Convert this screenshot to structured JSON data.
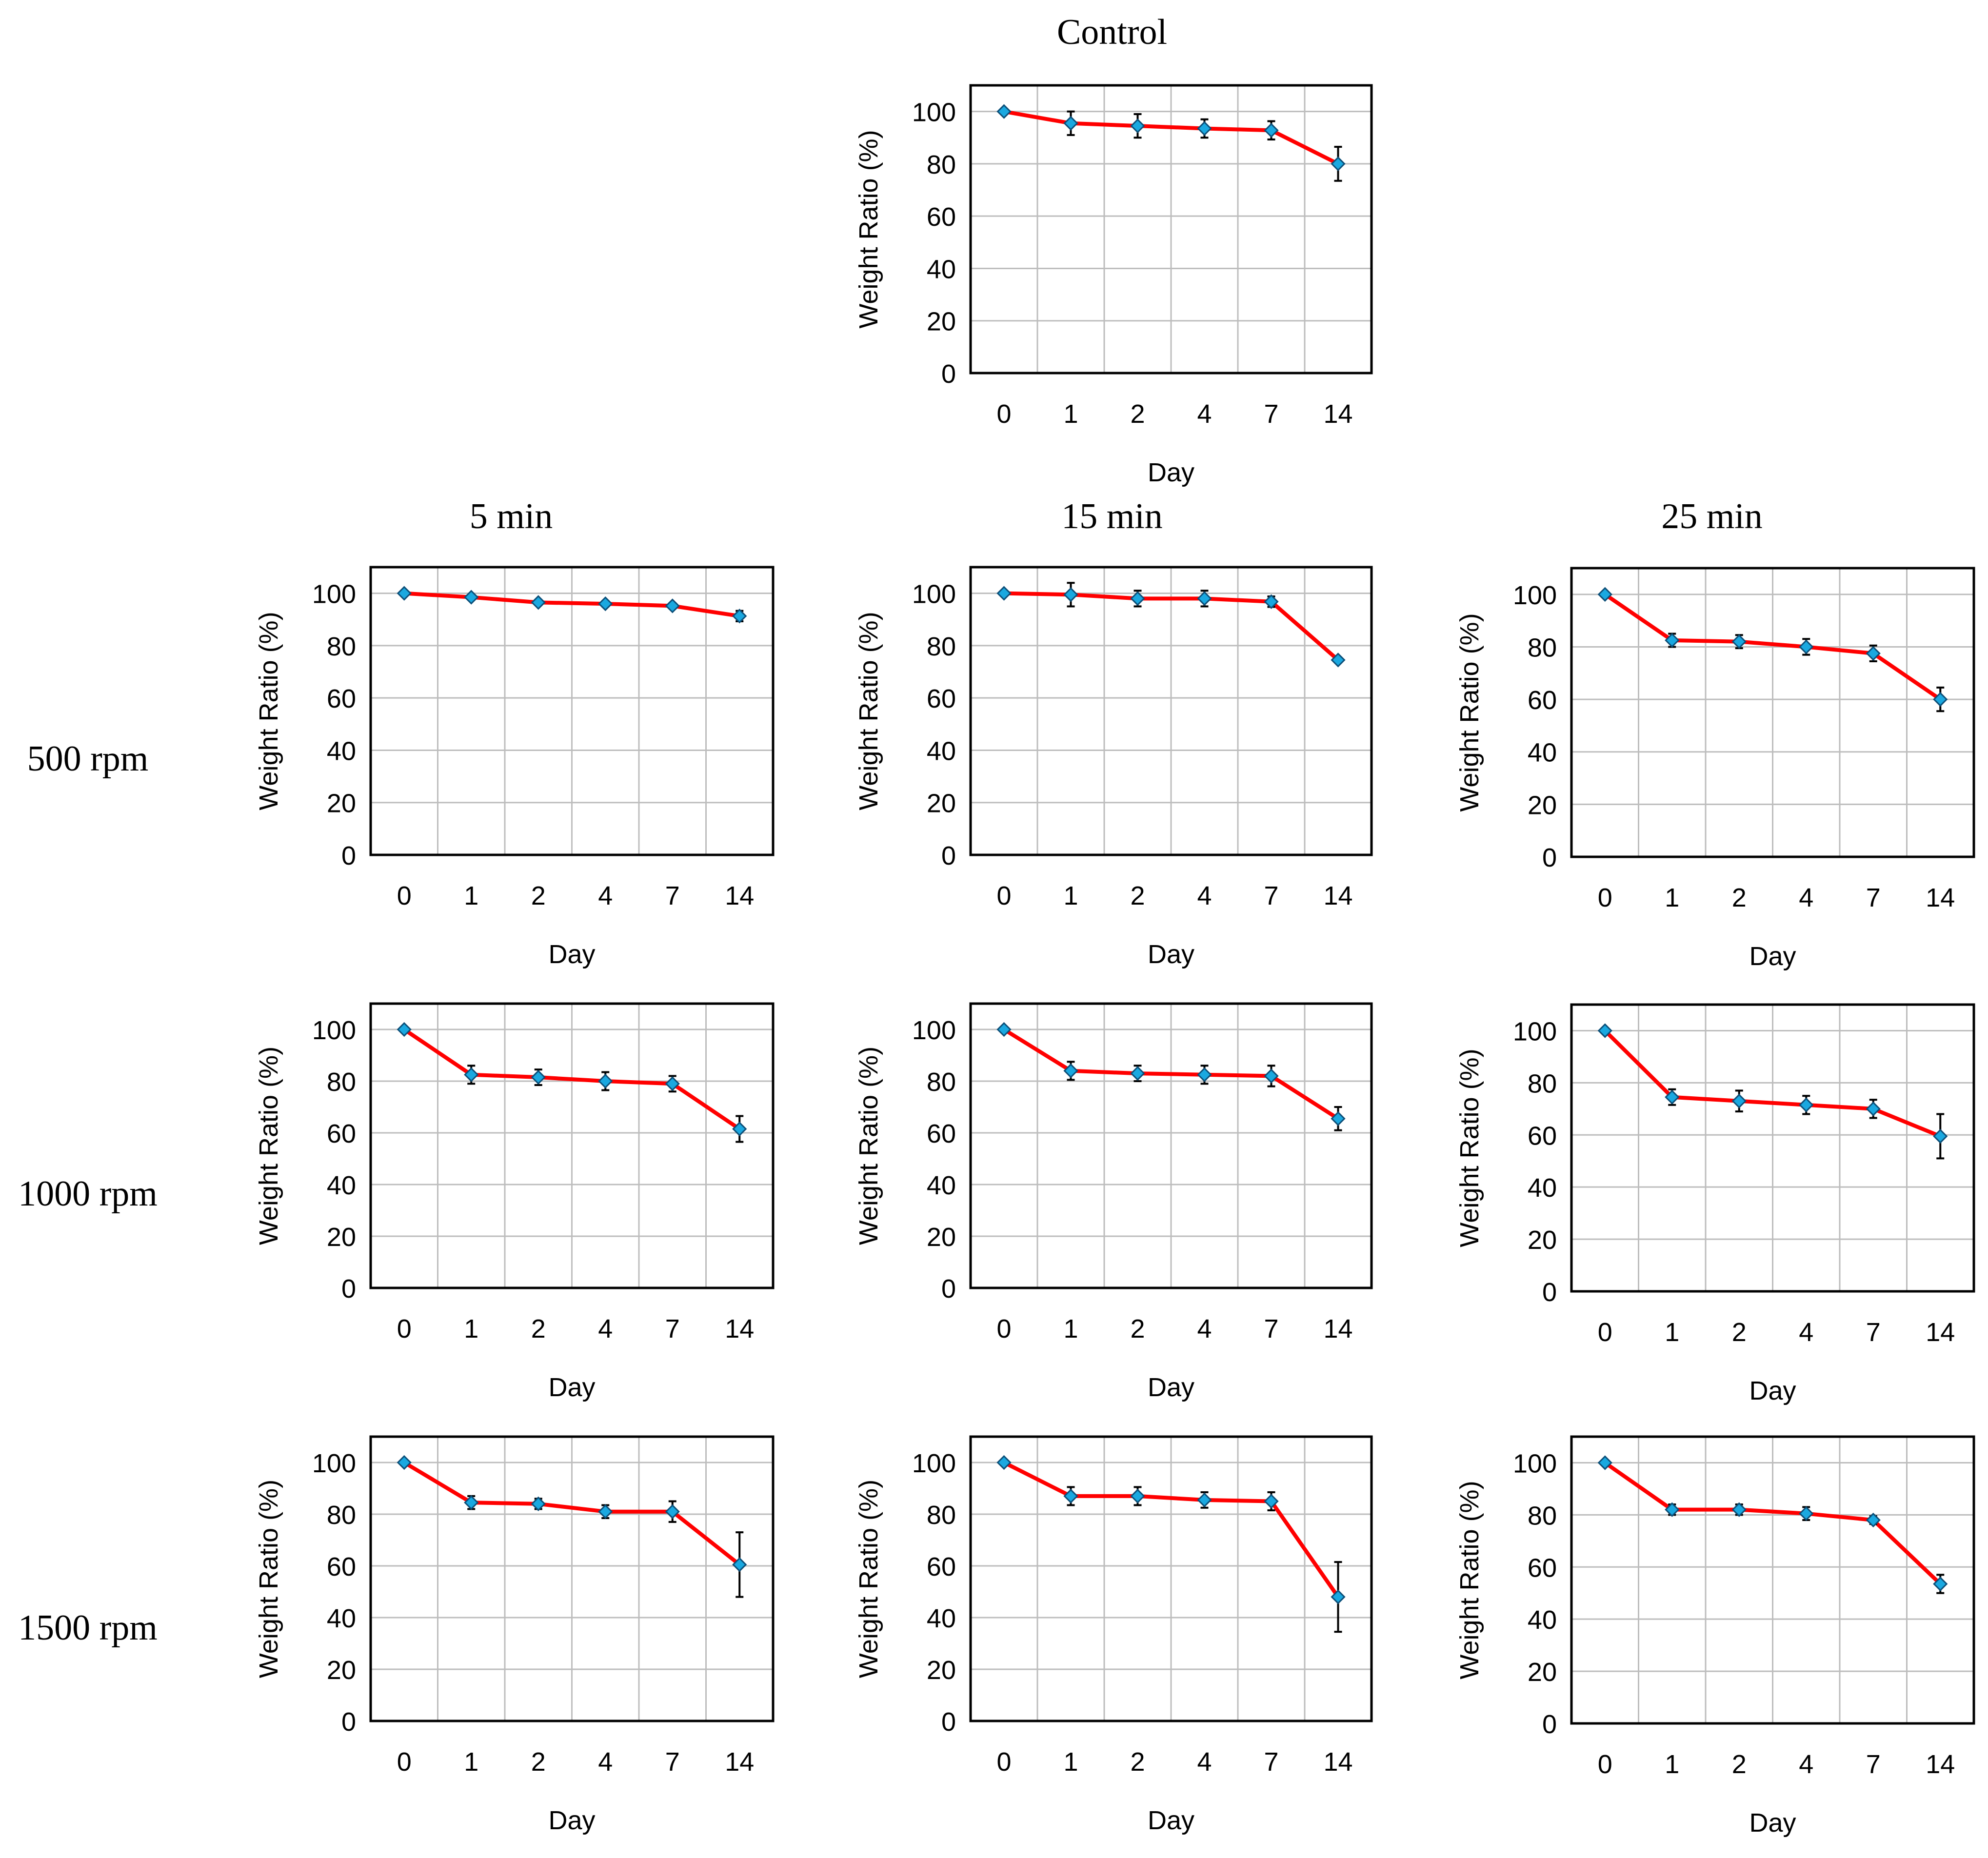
{
  "figure": {
    "column_headers": [
      "5 min",
      "15 min",
      "25 min"
    ],
    "row_headers": [
      "500 rpm",
      "1000 rpm",
      "1500 rpm"
    ],
    "control_title": "Control"
  },
  "colors": {
    "line": "#ff0000",
    "marker_fill": "#1aa8e0",
    "marker_stroke": "#0d4f78",
    "error_bar": "#000000",
    "grid": "#bdbdbd",
    "frame": "#000000",
    "text": "#000000"
  },
  "chart_data": [
    {
      "id": "control",
      "type": "line",
      "title": "Control",
      "categories": [
        "0",
        "1",
        "2",
        "4",
        "7",
        "14"
      ],
      "series": [
        {
          "values": [
            100,
            95.5,
            94.5,
            93.5,
            92.8,
            80
          ],
          "errors": [
            0,
            4.5,
            4.5,
            3.5,
            3.5,
            6.5
          ]
        }
      ],
      "xlabel": "Day",
      "ylabel": "Weight Ratio (%)",
      "ylim": [
        0,
        110
      ],
      "yticks": [
        0,
        20,
        40,
        60,
        80,
        100
      ],
      "grid": true
    },
    {
      "id": "500rpm-5min",
      "type": "line",
      "categories": [
        "0",
        "1",
        "2",
        "4",
        "7",
        "14"
      ],
      "series": [
        {
          "values": [
            100,
            98.5,
            96.5,
            96,
            95.2,
            91.3
          ],
          "errors": [
            0,
            1,
            1,
            1,
            1,
            2
          ]
        }
      ],
      "xlabel": "Day",
      "ylabel": "Weight Ratio (%)",
      "ylim": [
        0,
        110
      ],
      "yticks": [
        0,
        20,
        40,
        60,
        80,
        100
      ],
      "grid": true
    },
    {
      "id": "500rpm-15min",
      "type": "line",
      "categories": [
        "0",
        "1",
        "2",
        "4",
        "7",
        "14"
      ],
      "series": [
        {
          "values": [
            100,
            99.5,
            98,
            98,
            96.8,
            74.5
          ],
          "errors": [
            0,
            4.5,
            3,
            3,
            2,
            1
          ]
        }
      ],
      "xlabel": "Day",
      "ylabel": "Weight Ratio (%)",
      "ylim": [
        0,
        110
      ],
      "yticks": [
        0,
        20,
        40,
        60,
        80,
        100
      ],
      "grid": true
    },
    {
      "id": "500rpm-25min",
      "type": "line",
      "categories": [
        "0",
        "1",
        "2",
        "4",
        "7",
        "14"
      ],
      "series": [
        {
          "values": [
            100,
            82.5,
            82,
            80,
            77.5,
            60
          ],
          "errors": [
            0,
            2.5,
            2.5,
            3,
            3,
            4.5
          ]
        }
      ],
      "xlabel": "Day",
      "ylabel": "Weight Ratio (%)",
      "ylim": [
        0,
        110
      ],
      "yticks": [
        0,
        20,
        40,
        60,
        80,
        100
      ],
      "grid": true
    },
    {
      "id": "1000rpm-5min",
      "type": "line",
      "categories": [
        "0",
        "1",
        "2",
        "4",
        "7",
        "14"
      ],
      "series": [
        {
          "values": [
            100,
            82.5,
            81.5,
            80,
            79,
            61.5
          ],
          "errors": [
            0,
            3.5,
            3,
            3.5,
            3,
            5
          ]
        }
      ],
      "xlabel": "Day",
      "ylabel": "Weight Ratio (%)",
      "ylim": [
        0,
        110
      ],
      "yticks": [
        0,
        20,
        40,
        60,
        80,
        100
      ],
      "grid": true
    },
    {
      "id": "1000rpm-15min",
      "type": "line",
      "categories": [
        "0",
        "1",
        "2",
        "4",
        "7",
        "14"
      ],
      "series": [
        {
          "values": [
            100,
            84,
            83,
            82.5,
            82,
            65.5
          ],
          "errors": [
            0,
            3.5,
            3,
            3.5,
            4,
            4.5
          ]
        }
      ],
      "xlabel": "Day",
      "ylabel": "Weight Ratio (%)",
      "ylim": [
        0,
        110
      ],
      "yticks": [
        0,
        20,
        40,
        60,
        80,
        100
      ],
      "grid": true
    },
    {
      "id": "1000rpm-25min",
      "type": "line",
      "categories": [
        "0",
        "1",
        "2",
        "4",
        "7",
        "14"
      ],
      "series": [
        {
          "values": [
            100,
            74.5,
            73,
            71.5,
            70,
            59.5
          ],
          "errors": [
            0,
            3,
            4,
            3.5,
            3.5,
            8.5
          ]
        }
      ],
      "xlabel": "Day",
      "ylabel": "Weight Ratio (%)",
      "ylim": [
        0,
        110
      ],
      "yticks": [
        0,
        20,
        40,
        60,
        80,
        100
      ],
      "grid": true
    },
    {
      "id": "1500rpm-5min",
      "type": "line",
      "categories": [
        "0",
        "1",
        "2",
        "4",
        "7",
        "14"
      ],
      "series": [
        {
          "values": [
            100,
            84.5,
            84,
            81,
            81,
            60.5
          ],
          "errors": [
            0,
            2.5,
            2,
            2.5,
            4,
            12.5
          ]
        }
      ],
      "xlabel": "Day",
      "ylabel": "Weight Ratio (%)",
      "ylim": [
        0,
        110
      ],
      "yticks": [
        0,
        20,
        40,
        60,
        80,
        100
      ],
      "grid": true
    },
    {
      "id": "1500rpm-15min",
      "type": "line",
      "categories": [
        "0",
        "1",
        "2",
        "4",
        "7",
        "14"
      ],
      "series": [
        {
          "values": [
            100,
            87,
            87,
            85.5,
            85,
            48
          ],
          "errors": [
            0,
            3.5,
            3.5,
            3,
            3.5,
            13.5
          ]
        }
      ],
      "xlabel": "Day",
      "ylabel": "Weight Ratio (%)",
      "ylim": [
        0,
        110
      ],
      "yticks": [
        0,
        20,
        40,
        60,
        80,
        100
      ],
      "grid": true
    },
    {
      "id": "1500rpm-25min",
      "type": "line",
      "categories": [
        "0",
        "1",
        "2",
        "4",
        "7",
        "14"
      ],
      "series": [
        {
          "values": [
            100,
            82,
            82,
            80.5,
            78,
            53.5
          ],
          "errors": [
            0,
            2,
            2,
            2.5,
            1.5,
            3.5
          ]
        }
      ],
      "xlabel": "Day",
      "ylabel": "Weight Ratio (%)",
      "ylim": [
        0,
        110
      ],
      "yticks": [
        0,
        20,
        40,
        60,
        80,
        100
      ],
      "grid": true
    }
  ]
}
